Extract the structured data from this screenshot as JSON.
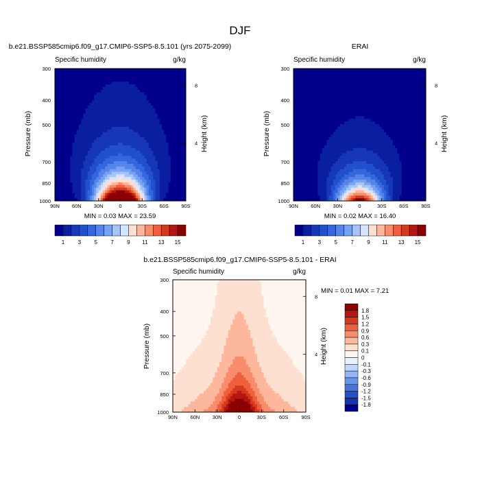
{
  "figure_title": "DJF",
  "chart_data": [
    {
      "type": "contour",
      "title": "b.e21.BSSP585cmip6.f09_g17.CMIP6-SSP5-8.5.101 (yrs 2075-2099)",
      "left_label": "Specific humidity",
      "right_label": "g/kg",
      "ylabel": "Pressure (mb)",
      "ylabel_right": "Height (km)",
      "x_ticks": [
        "90N",
        "60N",
        "30N",
        "0",
        "30S",
        "60S",
        "90S"
      ],
      "y_ticks": [
        "300",
        "400",
        "500",
        "700",
        "850",
        "1000"
      ],
      "height_ticks": [
        "8",
        "4"
      ],
      "xlim": [
        90,
        -90
      ],
      "ylim": [
        1000,
        300
      ],
      "stats_text": "MIN =   0.03  MAX =  23.59",
      "min": 0.03,
      "max": 23.59,
      "colorbar_labels": [
        "1",
        "3",
        "5",
        "7",
        "9",
        "11",
        "13",
        "15"
      ],
      "profile": {
        "peak_lat": 0,
        "surface_value": 23.59,
        "scale_height_mb": 185,
        "width_deg": 32
      }
    },
    {
      "type": "contour",
      "title": "ERAI",
      "left_label": "Specific humidity",
      "right_label": "g/kg",
      "ylabel": "Pressure (mb)",
      "ylabel_right": "Height (km)",
      "x_ticks": [
        "90N",
        "60N",
        "30N",
        "0",
        "30S",
        "60S",
        "90S"
      ],
      "y_ticks": [
        "300",
        "400",
        "500",
        "700",
        "850",
        "1000"
      ],
      "height_ticks": [
        "8",
        "4"
      ],
      "xlim": [
        90,
        -90
      ],
      "ylim": [
        1000,
        300
      ],
      "stats_text": "MIN =   0.02  MAX =  16.40",
      "min": 0.02,
      "max": 16.4,
      "colorbar_labels": [
        "1",
        "3",
        "5",
        "7",
        "9",
        "11",
        "13",
        "15"
      ],
      "profile": {
        "peak_lat": 0,
        "surface_value": 16.4,
        "scale_height_mb": 165,
        "width_deg": 30
      }
    },
    {
      "type": "contour",
      "title": "b.e21.BSSP585cmip6.f09_g17.CMIP6-SSP5-8.5.101 - ERAI",
      "left_label": "Specific humidity",
      "right_label": "g/kg",
      "ylabel": "Pressure (mb)",
      "ylabel_right": "Height (km)",
      "x_ticks": [
        "90N",
        "60N",
        "30N",
        "0",
        "30S",
        "60S",
        "90S"
      ],
      "y_ticks": [
        "300",
        "400",
        "500",
        "700",
        "850",
        "1000"
      ],
      "height_ticks": [
        "8",
        "4"
      ],
      "xlim": [
        90,
        -90
      ],
      "ylim": [
        1000,
        300
      ],
      "stats_text": "MIN =   0.01  MAX =   7.21",
      "min": 0.01,
      "max": 7.21,
      "colorbar_labels": [
        "1.8",
        "1.5",
        "1.2",
        "0.9",
        "0.6",
        "0.3",
        "0.1",
        "0",
        "-0.1",
        "-0.3",
        "-0.6",
        "-0.9",
        "-1.2",
        "-1.5",
        "-1.8"
      ],
      "profile": {
        "peak_lat": 0,
        "surface_value": 7.21,
        "scale_height_mb": 200,
        "width_deg": 40
      }
    }
  ],
  "colors": {
    "abs_scale": [
      "#00008b",
      "#0a1fa0",
      "#1637b8",
      "#2150cc",
      "#3466dc",
      "#5585ea",
      "#78a3f3",
      "#a6c4fa",
      "#d6e5fd",
      "#fde0d0",
      "#fcb79c",
      "#f88d6b",
      "#ee5f3d",
      "#d63a1e",
      "#b31710",
      "#8b0000"
    ],
    "diff_scale": [
      "#8b0000",
      "#b31710",
      "#d63a1e",
      "#ee5f3d",
      "#f88d6b",
      "#fcb79c",
      "#fde0d0",
      "#fff6f0",
      "#e8f1fe",
      "#c0d5fb",
      "#93b5f5",
      "#6a95ec",
      "#4574dc",
      "#2650c4",
      "#1434ab",
      "#00008b"
    ]
  }
}
